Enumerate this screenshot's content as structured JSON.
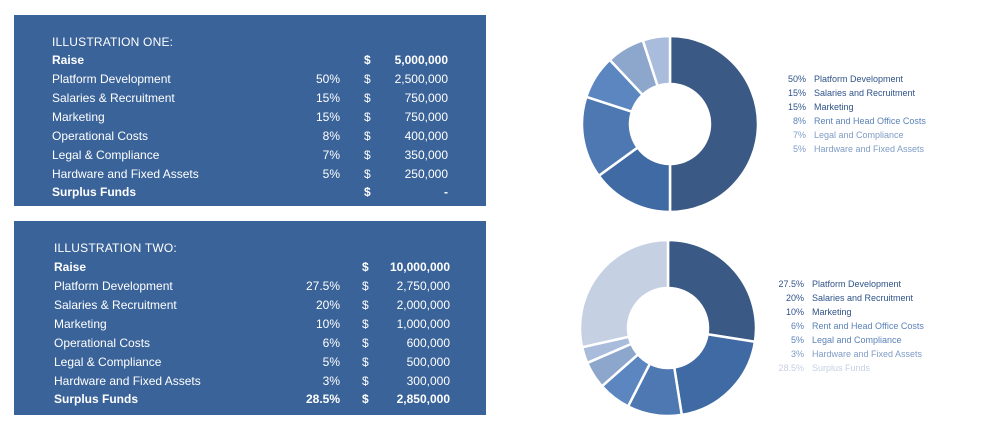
{
  "colors": {
    "panel_bg": "#3a6399",
    "segments": [
      "#3a5a85",
      "#3f6aa3",
      "#4d78b2",
      "#5b86c0",
      "#8da6cc",
      "#a9bcdb",
      "#c5d0e3"
    ]
  },
  "illustration_one": {
    "title": "ILLUSTRATION ONE:",
    "raise": {
      "label": "Raise",
      "currency": "$",
      "amount": "5,000,000"
    },
    "rows": [
      {
        "label": "Platform Development",
        "percent": "50%",
        "currency": "$",
        "amount": "2,500,000"
      },
      {
        "label": "Salaries & Recruitment",
        "percent": "15%",
        "currency": "$",
        "amount": "750,000"
      },
      {
        "label": "Marketing",
        "percent": "15%",
        "currency": "$",
        "amount": "750,000"
      },
      {
        "label": "Operational Costs",
        "percent": "8%",
        "currency": "$",
        "amount": "400,000"
      },
      {
        "label": "Legal & Compliance",
        "percent": "7%",
        "currency": "$",
        "amount": "350,000"
      },
      {
        "label": "Hardware and Fixed Assets",
        "percent": "5%",
        "currency": "$",
        "amount": "250,000"
      }
    ],
    "surplus": {
      "label": "Surplus Funds",
      "percent": "",
      "currency": "$",
      "amount": "-"
    }
  },
  "illustration_two": {
    "title": "ILLUSTRATION TWO:",
    "raise": {
      "label": "Raise",
      "currency": "$",
      "amount": "10,000,000"
    },
    "rows": [
      {
        "label": "Platform Development",
        "percent": "27.5%",
        "currency": "$",
        "amount": "2,750,000"
      },
      {
        "label": "Salaries & Recruitment",
        "percent": "20%",
        "currency": "$",
        "amount": "2,000,000"
      },
      {
        "label": "Marketing",
        "percent": "10%",
        "currency": "$",
        "amount": "1,000,000"
      },
      {
        "label": "Operational Costs",
        "percent": "6%",
        "currency": "$",
        "amount": "600,000"
      },
      {
        "label": "Legal & Compliance",
        "percent": "5%",
        "currency": "$",
        "amount": "500,000"
      },
      {
        "label": "Hardware and Fixed Assets",
        "percent": "3%",
        "currency": "$",
        "amount": "300,000"
      }
    ],
    "surplus": {
      "label": "Surplus Funds",
      "percent": "28.5%",
      "currency": "$",
      "amount": "2,850,000"
    }
  },
  "chart_data": [
    {
      "type": "pie",
      "donut": true,
      "categories": [
        "Platform Development",
        "Salaries and Recruitment",
        "Marketing",
        "Rent and Head Office Costs",
        "Legal and Compliance",
        "Hardware and Fixed Assets"
      ],
      "values": [
        50,
        15,
        15,
        8,
        7,
        5
      ],
      "labels": [
        "50%",
        "15%",
        "15%",
        "8%",
        "7%",
        "5%"
      ],
      "colors": [
        "#3a5a85",
        "#3f6aa3",
        "#4d78b2",
        "#5b86c0",
        "#8da6cc",
        "#a9bcdb"
      ],
      "legend_colors": [
        "#2f5388",
        "#2f5388",
        "#2f5388",
        "#5b82b8",
        "#7f9cc6",
        "#7f9cc6"
      ],
      "legend": "right"
    },
    {
      "type": "pie",
      "donut": true,
      "categories": [
        "Platform Development",
        "Salaries and Recruitment",
        "Marketing",
        "Rent and Head Office Costs",
        "Legal and Compliance",
        "Hardware and Fixed Assets",
        "Surplus Funds"
      ],
      "values": [
        27.5,
        20,
        10,
        6,
        5,
        3,
        28.5
      ],
      "labels": [
        "27.5%",
        "20%",
        "10%",
        "6%",
        "5%",
        "3%",
        "28.5%"
      ],
      "colors": [
        "#3a5a85",
        "#3f6aa3",
        "#4d78b2",
        "#5b86c0",
        "#8da6cc",
        "#a9bcdb",
        "#c5d0e3"
      ],
      "legend_colors": [
        "#2f5388",
        "#2f5388",
        "#2f5388",
        "#5b82b8",
        "#5b82b8",
        "#7f9cc6",
        "#c5d0e3"
      ],
      "legend": "right"
    }
  ]
}
